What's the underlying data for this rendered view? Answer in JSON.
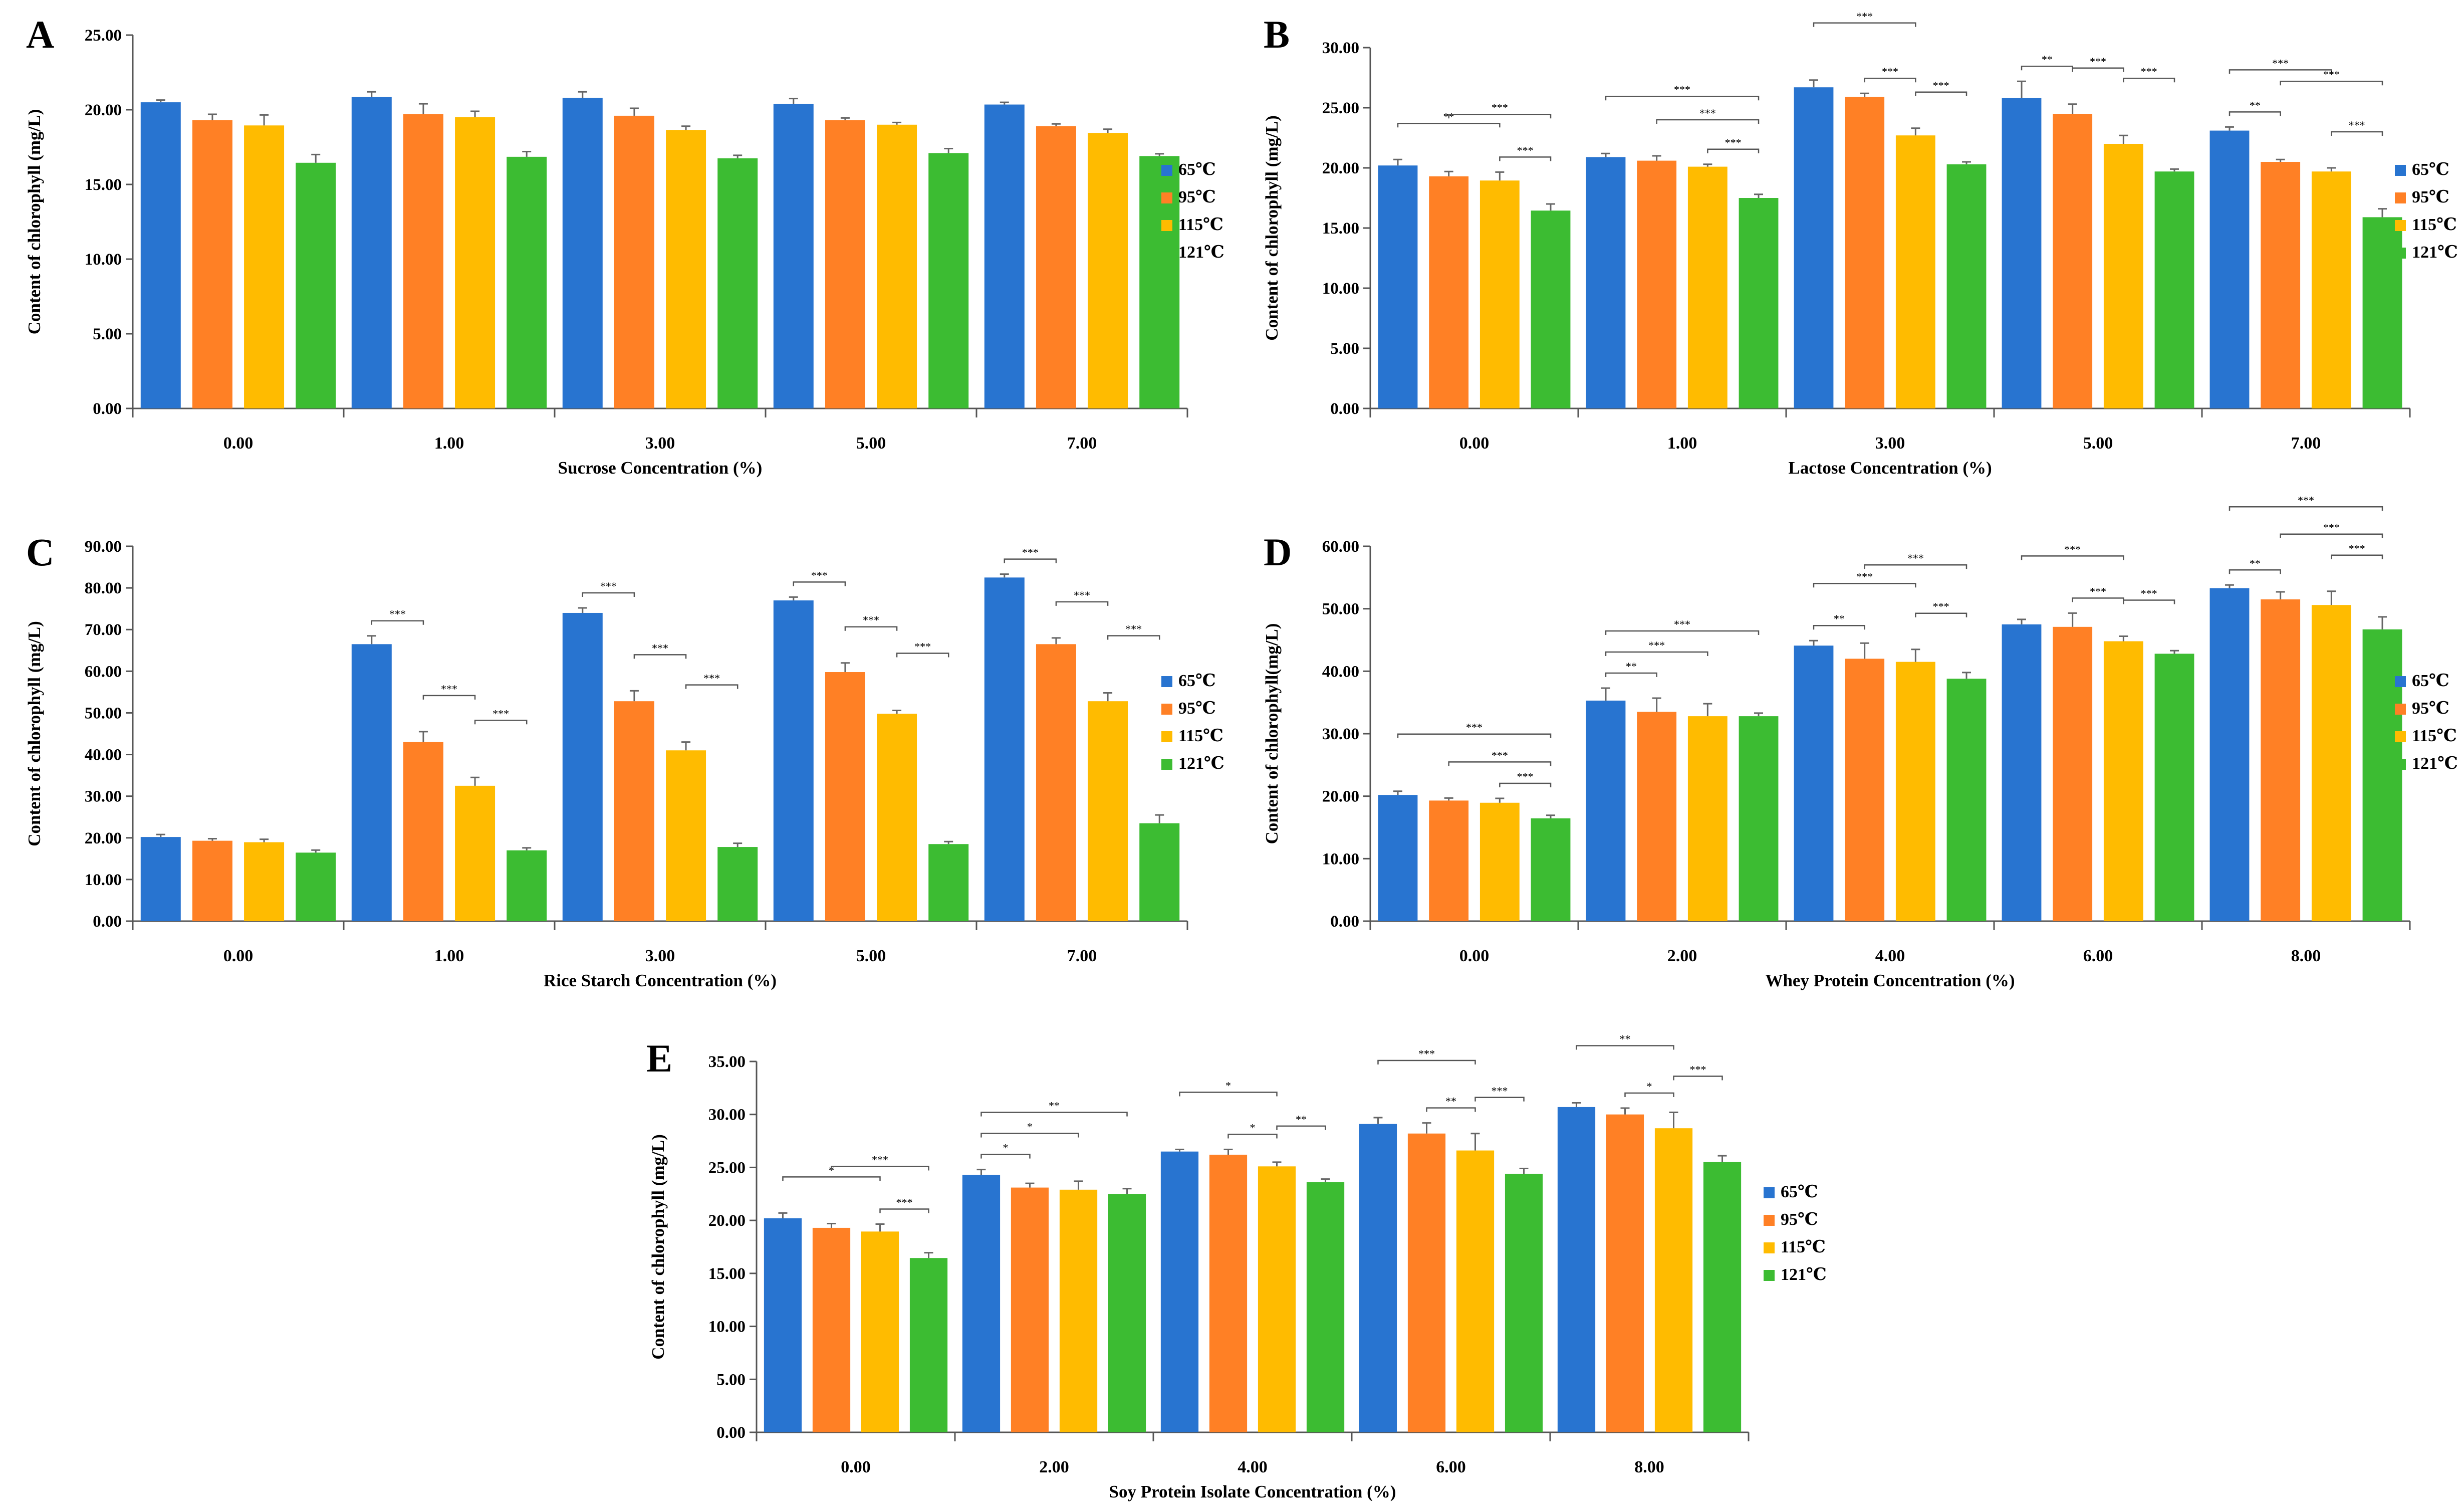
{
  "figure": {
    "series_colors": [
      "#2874d0",
      "#ff8025",
      "#ffbb00",
      "#3cbc32"
    ]
  },
  "chart_data": [
    {
      "panel_label": "A",
      "type": "bar",
      "xlabel": "Sucrose Concentration (%)",
      "ylabel": "Content of chlorophyll (mg/L)",
      "ylim": [
        0,
        25
      ],
      "yticks": [
        "0.00",
        "5.00",
        "10.00",
        "15.00",
        "20.00",
        "25.00"
      ],
      "categories": [
        "0.00",
        "1.00",
        "3.00",
        "5.00",
        "7.00"
      ],
      "series": [
        {
          "name": "65℃",
          "values": [
            20.5,
            20.85,
            20.8,
            20.4,
            20.35
          ],
          "errors": [
            0.15,
            0.35,
            0.4,
            0.35,
            0.15
          ]
        },
        {
          "name": "95℃",
          "values": [
            19.3,
            19.7,
            19.6,
            19.3,
            18.9
          ],
          "errors": [
            0.4,
            0.7,
            0.5,
            0.15,
            0.15
          ]
        },
        {
          "name": "115℃",
          "values": [
            18.95,
            19.5,
            18.65,
            19.0,
            18.45
          ],
          "errors": [
            0.7,
            0.4,
            0.25,
            0.15,
            0.25
          ]
        },
        {
          "name": "121℃",
          "values": [
            16.45,
            16.85,
            16.75,
            17.1,
            16.9
          ],
          "errors": [
            0.55,
            0.35,
            0.2,
            0.3,
            0.15
          ]
        }
      ],
      "significance": []
    },
    {
      "panel_label": "B",
      "type": "bar",
      "xlabel": "Lactose Concentration (%)",
      "ylabel": "Content of chlorophyll (mg/L)",
      "ylim": [
        0,
        30
      ],
      "yticks": [
        "0.00",
        "5.00",
        "10.00",
        "15.00",
        "20.00",
        "25.00",
        "30.00"
      ],
      "categories": [
        "0.00",
        "1.00",
        "3.00",
        "5.00",
        "7.00"
      ],
      "series": [
        {
          "name": "65℃",
          "values": [
            20.2,
            20.9,
            26.7,
            25.8,
            23.1
          ],
          "errors": [
            0.5,
            0.3,
            0.6,
            1.4,
            0.3
          ]
        },
        {
          "name": "95℃",
          "values": [
            19.3,
            20.6,
            25.9,
            24.5,
            20.5
          ],
          "errors": [
            0.4,
            0.4,
            0.3,
            0.8,
            0.2
          ]
        },
        {
          "name": "115℃",
          "values": [
            18.95,
            20.1,
            22.7,
            22.0,
            19.7
          ],
          "errors": [
            0.7,
            0.2,
            0.6,
            0.7,
            0.3
          ]
        },
        {
          "name": "121℃",
          "values": [
            16.45,
            17.5,
            20.3,
            19.7,
            15.9
          ],
          "errors": [
            0.55,
            0.3,
            0.2,
            0.2,
            0.7
          ]
        }
      ],
      "significance": [
        {
          "category": 0,
          "from": 0,
          "to": 2,
          "label": "**"
        },
        {
          "category": 0,
          "from": 1,
          "to": 3,
          "label": "***"
        },
        {
          "category": 0,
          "from": 2,
          "to": 3,
          "label": "***"
        },
        {
          "category": 1,
          "from": 0,
          "to": 3,
          "label": "***"
        },
        {
          "category": 1,
          "from": 1,
          "to": 3,
          "label": "***"
        },
        {
          "category": 1,
          "from": 2,
          "to": 3,
          "label": "***"
        },
        {
          "category": 2,
          "from": 0,
          "to": 2,
          "label": "***"
        },
        {
          "category": 2,
          "from": 1,
          "to": 2,
          "label": "***"
        },
        {
          "category": 2,
          "from": 2,
          "to": 3,
          "label": "***"
        },
        {
          "category": 3,
          "from": 0,
          "to": 1,
          "label": "**"
        },
        {
          "category": 3,
          "from": 1,
          "to": 2,
          "label": "***"
        },
        {
          "category": 3,
          "from": 2,
          "to": 3,
          "label": "***"
        },
        {
          "category": 4,
          "from": 0,
          "to": 2,
          "label": "***"
        },
        {
          "category": 4,
          "from": 0,
          "to": 1,
          "label": "**"
        },
        {
          "category": 4,
          "from": 1,
          "to": 3,
          "label": "***"
        },
        {
          "category": 4,
          "from": 2,
          "to": 3,
          "label": "***"
        }
      ]
    },
    {
      "panel_label": "C",
      "type": "bar",
      "xlabel": "Rice Starch Concentration (%)",
      "ylabel": "Content of chlorophyll (mg/L)",
      "ylim": [
        0,
        90
      ],
      "yticks": [
        "0.00",
        "10.00",
        "20.00",
        "30.00",
        "40.00",
        "50.00",
        "60.00",
        "70.00",
        "80.00",
        "90.00"
      ],
      "categories": [
        "0.00",
        "1.00",
        "3.00",
        "5.00",
        "7.00"
      ],
      "series": [
        {
          "name": "65℃",
          "values": [
            20.2,
            66.5,
            74.0,
            77.0,
            82.5
          ],
          "errors": [
            0.6,
            2.0,
            1.2,
            0.8,
            0.8
          ]
        },
        {
          "name": "95℃",
          "values": [
            19.3,
            43.0,
            52.8,
            59.8,
            66.5
          ],
          "errors": [
            0.5,
            2.5,
            2.5,
            2.2,
            1.5
          ]
        },
        {
          "name": "115℃",
          "values": [
            18.95,
            32.5,
            41.0,
            49.8,
            52.8
          ],
          "errors": [
            0.7,
            2.0,
            2.0,
            0.8,
            2.0
          ]
        },
        {
          "name": "121℃",
          "values": [
            16.45,
            17.0,
            17.8,
            18.5,
            23.5
          ],
          "errors": [
            0.6,
            0.6,
            0.9,
            0.6,
            2.0
          ]
        }
      ],
      "significance": [
        {
          "category": 1,
          "from": 0,
          "to": 1,
          "label": "***"
        },
        {
          "category": 1,
          "from": 1,
          "to": 2,
          "label": "***"
        },
        {
          "category": 1,
          "from": 2,
          "to": 3,
          "label": "***"
        },
        {
          "category": 2,
          "from": 0,
          "to": 1,
          "label": "***"
        },
        {
          "category": 2,
          "from": 1,
          "to": 2,
          "label": "***"
        },
        {
          "category": 2,
          "from": 2,
          "to": 3,
          "label": "***"
        },
        {
          "category": 3,
          "from": 0,
          "to": 1,
          "label": "***"
        },
        {
          "category": 3,
          "from": 1,
          "to": 2,
          "label": "***"
        },
        {
          "category": 3,
          "from": 2,
          "to": 3,
          "label": "***"
        },
        {
          "category": 4,
          "from": 0,
          "to": 1,
          "label": "***"
        },
        {
          "category": 4,
          "from": 1,
          "to": 2,
          "label": "***"
        },
        {
          "category": 4,
          "from": 2,
          "to": 3,
          "label": "***"
        }
      ]
    },
    {
      "panel_label": "D",
      "type": "bar",
      "xlabel": "Whey Protein Concentration (%)",
      "ylabel": "Content of chlorophyll(mg/L)",
      "ylim": [
        0,
        60
      ],
      "yticks": [
        "0.00",
        "10.00",
        "20.00",
        "30.00",
        "40.00",
        "50.00",
        "60.00"
      ],
      "categories": [
        "0.00",
        "2.00",
        "4.00",
        "6.00",
        "8.00"
      ],
      "series": [
        {
          "name": "65℃",
          "values": [
            20.2,
            35.3,
            44.1,
            47.5,
            53.3
          ],
          "errors": [
            0.6,
            2.0,
            0.8,
            0.8,
            0.5
          ]
        },
        {
          "name": "95℃",
          "values": [
            19.3,
            33.5,
            42.0,
            47.1,
            51.5
          ],
          "errors": [
            0.4,
            2.2,
            2.5,
            2.2,
            1.2
          ]
        },
        {
          "name": "115℃",
          "values": [
            18.95,
            32.8,
            41.5,
            44.8,
            50.6
          ],
          "errors": [
            0.7,
            2.0,
            2.0,
            0.8,
            2.2
          ]
        },
        {
          "name": "121℃",
          "values": [
            16.45,
            32.8,
            38.8,
            42.8,
            46.7
          ],
          "errors": [
            0.5,
            0.5,
            1.0,
            0.5,
            2.0
          ]
        }
      ],
      "significance": [
        {
          "category": 0,
          "from": 0,
          "to": 3,
          "label": "***"
        },
        {
          "category": 0,
          "from": 1,
          "to": 3,
          "label": "***"
        },
        {
          "category": 0,
          "from": 2,
          "to": 3,
          "label": "***"
        },
        {
          "category": 1,
          "from": 0,
          "to": 3,
          "label": "***"
        },
        {
          "category": 1,
          "from": 0,
          "to": 2,
          "label": "***"
        },
        {
          "category": 1,
          "from": 0,
          "to": 1,
          "label": "**"
        },
        {
          "category": 2,
          "from": 0,
          "to": 2,
          "label": "***"
        },
        {
          "category": 2,
          "from": 0,
          "to": 1,
          "label": "**"
        },
        {
          "category": 2,
          "from": 1,
          "to": 3,
          "label": "***"
        },
        {
          "category": 2,
          "from": 2,
          "to": 3,
          "label": "***"
        },
        {
          "category": 3,
          "from": 0,
          "to": 2,
          "label": "***"
        },
        {
          "category": 3,
          "from": 1,
          "to": 2,
          "label": "***"
        },
        {
          "category": 3,
          "from": 2,
          "to": 3,
          "label": "***"
        },
        {
          "category": 4,
          "from": 0,
          "to": 3,
          "label": "***"
        },
        {
          "category": 4,
          "from": 0,
          "to": 1,
          "label": "**"
        },
        {
          "category": 4,
          "from": 1,
          "to": 3,
          "label": "***"
        },
        {
          "category": 4,
          "from": 2,
          "to": 3,
          "label": "***"
        }
      ]
    },
    {
      "panel_label": "E",
      "type": "bar",
      "xlabel": "Soy Protein Isolate Concentration (%)",
      "ylabel": "Content of chlorophyll (mg/L)",
      "ylim": [
        0,
        35
      ],
      "yticks": [
        "0.00",
        "5.00",
        "10.00",
        "15.00",
        "20.00",
        "25.00",
        "30.00",
        "35.00"
      ],
      "categories": [
        "0.00",
        "2.00",
        "4.00",
        "6.00",
        "8.00"
      ],
      "series": [
        {
          "name": "65℃",
          "values": [
            20.2,
            24.3,
            26.5,
            29.1,
            30.7
          ],
          "errors": [
            0.5,
            0.5,
            0.2,
            0.6,
            0.4
          ]
        },
        {
          "name": "95℃",
          "values": [
            19.3,
            23.1,
            26.2,
            28.2,
            30.0
          ],
          "errors": [
            0.4,
            0.4,
            0.5,
            1.0,
            0.6
          ]
        },
        {
          "name": "115℃",
          "values": [
            18.95,
            22.9,
            25.1,
            26.6,
            28.7
          ],
          "errors": [
            0.7,
            0.8,
            0.4,
            1.6,
            1.5
          ]
        },
        {
          "name": "121℃",
          "values": [
            16.45,
            22.5,
            23.6,
            24.4,
            25.5
          ],
          "errors": [
            0.5,
            0.5,
            0.3,
            0.5,
            0.6
          ]
        }
      ],
      "significance": [
        {
          "category": 0,
          "from": 0,
          "to": 2,
          "label": "*"
        },
        {
          "category": 0,
          "from": 1,
          "to": 3,
          "label": "***"
        },
        {
          "category": 0,
          "from": 2,
          "to": 3,
          "label": "***"
        },
        {
          "category": 1,
          "from": 0,
          "to": 3,
          "label": "**"
        },
        {
          "category": 1,
          "from": 0,
          "to": 2,
          "label": "*"
        },
        {
          "category": 1,
          "from": 0,
          "to": 1,
          "label": "*"
        },
        {
          "category": 2,
          "from": 0,
          "to": 2,
          "label": "*"
        },
        {
          "category": 2,
          "from": 1,
          "to": 2,
          "label": "*"
        },
        {
          "category": 2,
          "from": 2,
          "to": 3,
          "label": "**"
        },
        {
          "category": 3,
          "from": 0,
          "to": 2,
          "label": "***"
        },
        {
          "category": 3,
          "from": 1,
          "to": 2,
          "label": "**"
        },
        {
          "category": 3,
          "from": 2,
          "to": 3,
          "label": "***"
        },
        {
          "category": 4,
          "from": 0,
          "to": 2,
          "label": "**"
        },
        {
          "category": 4,
          "from": 1,
          "to": 2,
          "label": "*"
        },
        {
          "category": 4,
          "from": 2,
          "to": 3,
          "label": "***"
        }
      ]
    }
  ]
}
